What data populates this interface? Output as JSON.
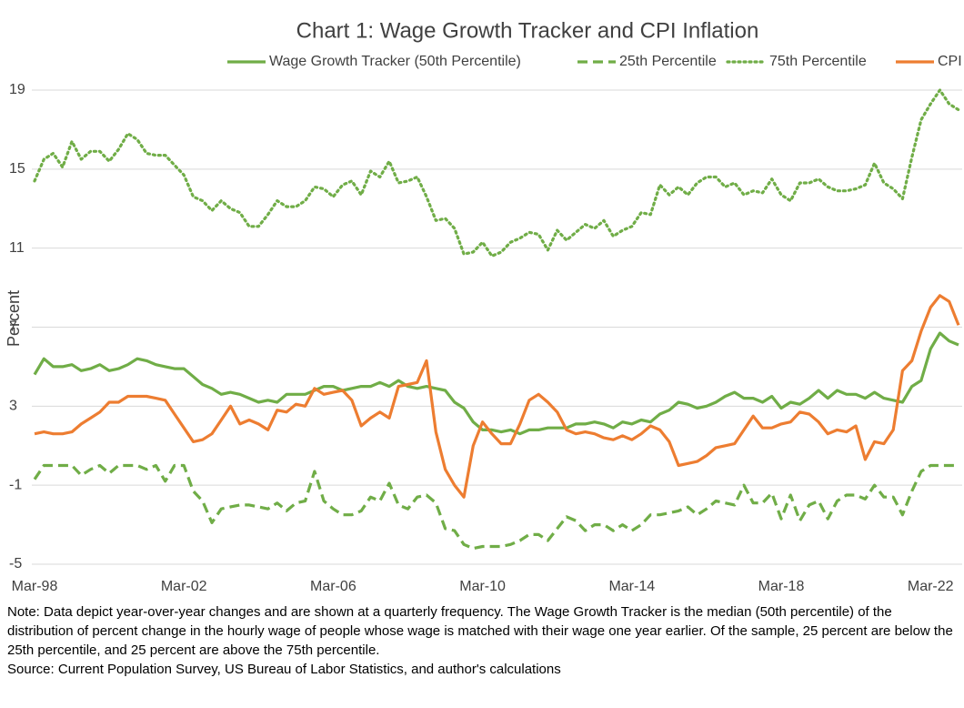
{
  "chart_data": {
    "type": "line",
    "title": "Chart 1: Wage Growth Tracker and CPI Inflation",
    "y_label": "Percent",
    "note": "Note: Data depict year-over-year changes and are shown at a quarterly frequency. The Wage Growth Tracker is the median (50th percentile) of the distribution of percent change in the hourly wage of people whose wage is matched with their wage one year earlier. Of the sample, 25 percent are below the 25th percentile, and 25 percent are above the 75th percentile.",
    "source": "Source: Current Population Survey, US Bureau of Labor Statistics, and author's calculations",
    "categories": [
      "Mar-98",
      null,
      null,
      null,
      null,
      null,
      null,
      null,
      null,
      null,
      null,
      null,
      null,
      null,
      null,
      null,
      "Mar-02",
      null,
      null,
      null,
      null,
      null,
      null,
      null,
      null,
      null,
      null,
      null,
      null,
      null,
      null,
      null,
      "Mar-06",
      null,
      null,
      null,
      null,
      null,
      null,
      null,
      null,
      null,
      null,
      null,
      null,
      null,
      null,
      null,
      "Mar-10",
      null,
      null,
      null,
      null,
      null,
      null,
      null,
      null,
      null,
      null,
      null,
      null,
      null,
      null,
      null,
      "Mar-14",
      null,
      null,
      null,
      null,
      null,
      null,
      null,
      null,
      null,
      null,
      null,
      null,
      null,
      null,
      null,
      "Mar-18",
      null,
      null,
      null,
      null,
      null,
      null,
      null,
      null,
      null,
      null,
      null,
      null,
      null,
      null,
      null,
      "Mar-22",
      null,
      null,
      null
    ],
    "ylim": [
      -5,
      19
    ],
    "yticks": [
      -5,
      -1,
      3,
      7,
      11,
      15,
      19
    ],
    "grid": true,
    "legend": "top",
    "series": [
      {
        "name": "Wage Growth Tracker (50th Percentile)",
        "color": "#70ad47",
        "style": "solid",
        "values": [
          4.6,
          5.4,
          5.0,
          5.0,
          5.1,
          4.8,
          4.9,
          5.1,
          4.8,
          4.9,
          5.1,
          5.4,
          5.3,
          5.1,
          5.0,
          4.9,
          4.9,
          4.5,
          4.1,
          3.9,
          3.6,
          3.7,
          3.6,
          3.4,
          3.2,
          3.3,
          3.2,
          3.6,
          3.6,
          3.6,
          3.8,
          4.0,
          4.0,
          3.8,
          3.9,
          4.0,
          4.0,
          4.2,
          4.0,
          4.3,
          4.0,
          3.9,
          4.0,
          3.9,
          3.8,
          3.2,
          2.9,
          2.2,
          1.8,
          1.8,
          1.7,
          1.8,
          1.6,
          1.8,
          1.8,
          1.9,
          1.9,
          1.9,
          2.1,
          2.1,
          2.2,
          2.1,
          1.9,
          2.2,
          2.1,
          2.3,
          2.2,
          2.6,
          2.8,
          3.2,
          3.1,
          2.9,
          3.0,
          3.2,
          3.5,
          3.7,
          3.4,
          3.4,
          3.2,
          3.5,
          2.9,
          3.2,
          3.1,
          3.4,
          3.8,
          3.4,
          3.8,
          3.6,
          3.6,
          3.4,
          3.7,
          3.4,
          3.3,
          3.2,
          4.0,
          4.3,
          5.9,
          6.7,
          6.3,
          6.1
        ]
      },
      {
        "name": "25th Percentile",
        "color": "#70ad47",
        "style": "dashed",
        "values": [
          -0.7,
          0.0,
          0.0,
          0.0,
          0.0,
          -0.5,
          -0.2,
          0.0,
          -0.4,
          0.0,
          0.0,
          0.0,
          -0.2,
          0.0,
          -0.8,
          0.0,
          0.0,
          -1.3,
          -1.8,
          -2.9,
          -2.2,
          -2.1,
          -2.0,
          -2.0,
          -2.1,
          -2.2,
          -1.9,
          -2.3,
          -1.9,
          -1.8,
          -0.3,
          -1.8,
          -2.2,
          -2.5,
          -2.5,
          -2.3,
          -1.6,
          -1.8,
          -0.9,
          -2.0,
          -2.2,
          -1.6,
          -1.5,
          -1.9,
          -3.2,
          -3.3,
          -4.0,
          -4.2,
          -4.1,
          -4.1,
          -4.1,
          -4.0,
          -3.8,
          -3.5,
          -3.5,
          -3.8,
          -3.2,
          -2.6,
          -2.8,
          -3.3,
          -3.0,
          -3.0,
          -3.3,
          -3.0,
          -3.3,
          -3.0,
          -2.5,
          -2.5,
          -2.4,
          -2.3,
          -2.1,
          -2.5,
          -2.2,
          -1.8,
          -1.9,
          -2.0,
          -1.0,
          -1.9,
          -1.9,
          -1.4,
          -2.7,
          -1.5,
          -2.8,
          -2.0,
          -1.8,
          -2.7,
          -1.8,
          -1.5,
          -1.5,
          -1.7,
          -1.0,
          -1.6,
          -1.6,
          -2.5,
          -1.3,
          -0.3,
          0.0,
          0.0,
          0.0,
          0.0
        ]
      },
      {
        "name": "75th Percentile",
        "color": "#70ad47",
        "style": "dotted",
        "values": [
          14.4,
          15.5,
          15.8,
          15.1,
          16.4,
          15.5,
          15.9,
          15.9,
          15.4,
          16.0,
          16.8,
          16.5,
          15.8,
          15.7,
          15.7,
          15.2,
          14.7,
          13.6,
          13.4,
          12.9,
          13.4,
          13.0,
          12.8,
          12.1,
          12.1,
          12.7,
          13.4,
          13.1,
          13.1,
          13.4,
          14.1,
          14.0,
          13.6,
          14.2,
          14.4,
          13.7,
          14.9,
          14.6,
          15.4,
          14.3,
          14.4,
          14.6,
          13.6,
          12.4,
          12.5,
          12.0,
          10.7,
          10.8,
          11.3,
          10.6,
          10.8,
          11.3,
          11.5,
          11.8,
          11.7,
          10.9,
          11.9,
          11.4,
          11.8,
          12.2,
          12.0,
          12.4,
          11.6,
          11.9,
          12.1,
          12.8,
          12.7,
          14.2,
          13.7,
          14.1,
          13.7,
          14.3,
          14.6,
          14.6,
          14.1,
          14.3,
          13.7,
          13.9,
          13.8,
          14.5,
          13.7,
          13.4,
          14.3,
          14.3,
          14.5,
          14.1,
          13.9,
          13.9,
          14.0,
          14.2,
          15.3,
          14.3,
          14.0,
          13.5,
          15.6,
          17.5,
          18.3,
          19.0,
          18.3,
          18.0
        ]
      },
      {
        "name": "CPI",
        "color": "#ed7d31",
        "style": "solid",
        "values": [
          1.6,
          1.7,
          1.6,
          1.6,
          1.7,
          2.1,
          2.4,
          2.7,
          3.2,
          3.2,
          3.5,
          3.5,
          3.5,
          3.4,
          3.3,
          2.6,
          1.9,
          1.2,
          1.3,
          1.6,
          2.3,
          3.0,
          2.1,
          2.3,
          2.1,
          1.8,
          2.8,
          2.7,
          3.1,
          3.0,
          3.9,
          3.6,
          3.7,
          3.8,
          3.3,
          2.0,
          2.4,
          2.7,
          2.4,
          4.0,
          4.1,
          4.2,
          5.3,
          1.7,
          -0.2,
          -1.0,
          -1.6,
          1.0,
          2.2,
          1.6,
          1.1,
          1.1,
          2.1,
          3.3,
          3.6,
          3.2,
          2.7,
          1.8,
          1.6,
          1.7,
          1.6,
          1.4,
          1.3,
          1.5,
          1.3,
          1.6,
          2.0,
          1.8,
          1.2,
          0.0,
          0.1,
          0.2,
          0.5,
          0.9,
          1.0,
          1.1,
          1.8,
          2.5,
          1.9,
          1.9,
          2.1,
          2.2,
          2.7,
          2.6,
          2.2,
          1.6,
          1.8,
          1.7,
          2.0,
          0.3,
          1.2,
          1.1,
          1.8,
          4.8,
          5.3,
          6.8,
          8.0,
          8.6,
          8.3,
          7.1
        ]
      }
    ]
  }
}
